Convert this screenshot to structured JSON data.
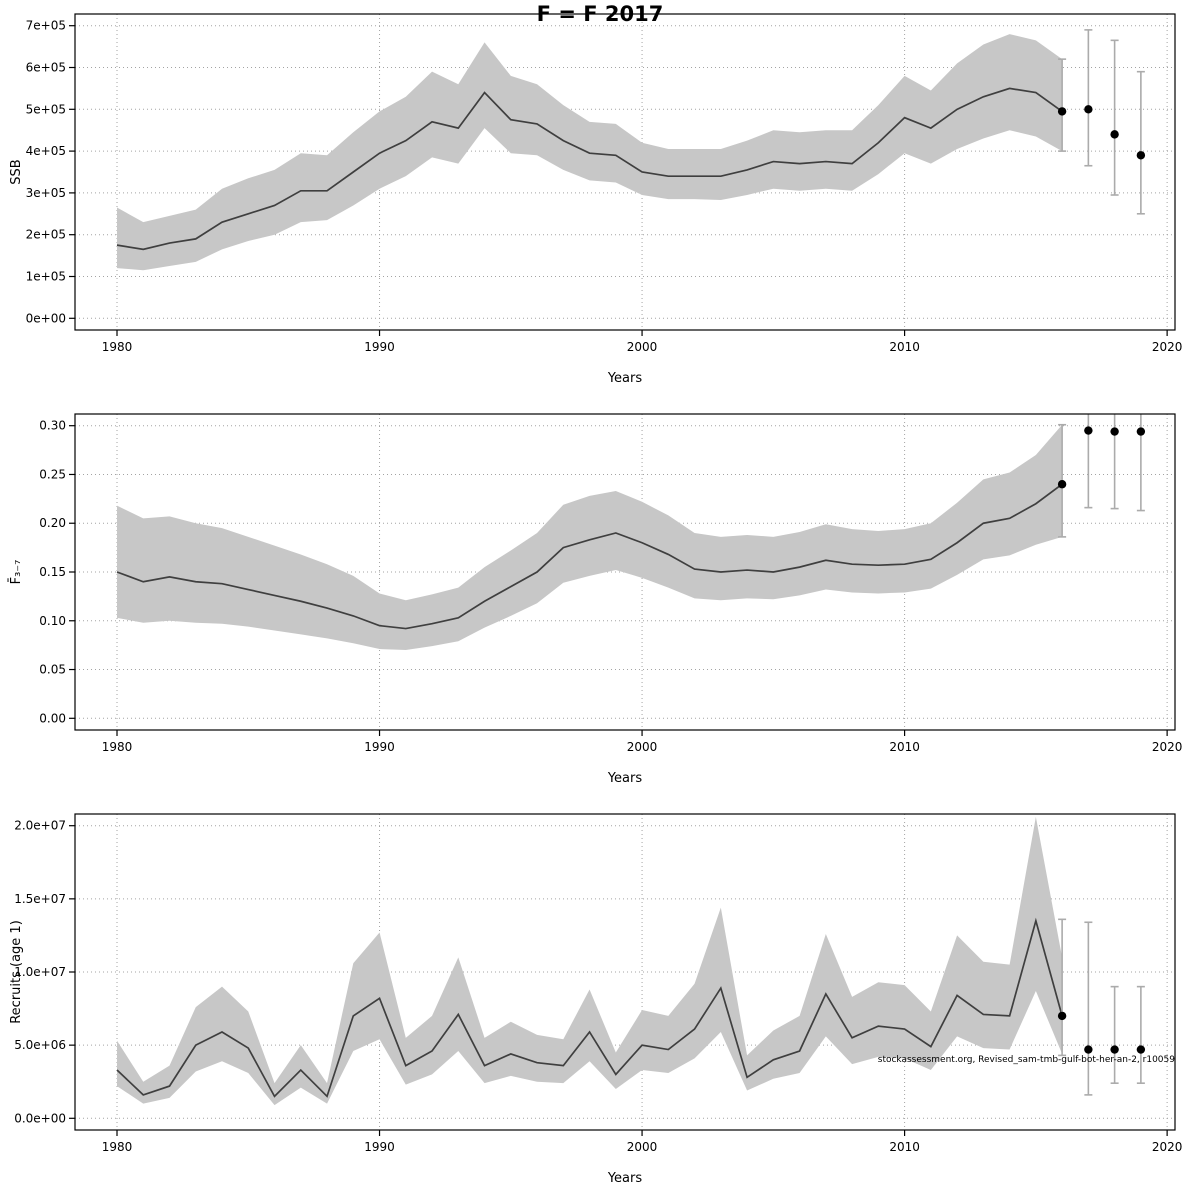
{
  "title": "F = F 2017",
  "colors": {
    "band": "#c7c7c7",
    "line": "#3f3f3f",
    "grid": "#a3a3a3",
    "errorbar": "#ababab",
    "point": "#000000",
    "axis": "#000000",
    "background": "#ffffff"
  },
  "chart_data": [
    {
      "type": "line",
      "name": "ssb",
      "xlabel": "Years",
      "ylabel": "SSB",
      "xlim": [
        1978.4,
        2020.3
      ],
      "ylim": [
        0,
        700000
      ],
      "xticks": [
        1980,
        1990,
        2000,
        2010,
        2020
      ],
      "yticks": [
        0,
        100000,
        200000,
        300000,
        400000,
        500000,
        600000,
        700000
      ],
      "ytick_labels": [
        "0e+00",
        "1e+05",
        "2e+05",
        "3e+05",
        "4e+05",
        "5e+05",
        "6e+05",
        "7e+05"
      ],
      "years": [
        1980,
        1981,
        1982,
        1983,
        1984,
        1985,
        1986,
        1987,
        1988,
        1989,
        1990,
        1991,
        1992,
        1993,
        1994,
        1995,
        1996,
        1997,
        1998,
        1999,
        2000,
        2001,
        2002,
        2003,
        2004,
        2005,
        2006,
        2007,
        2008,
        2009,
        2010,
        2011,
        2012,
        2013,
        2014,
        2015,
        2016
      ],
      "values": [
        175000,
        165000,
        180000,
        190000,
        230000,
        250000,
        270000,
        305000,
        305000,
        350000,
        395000,
        425000,
        470000,
        455000,
        540000,
        475000,
        465000,
        425000,
        395000,
        390000,
        350000,
        340000,
        340000,
        340000,
        355000,
        375000,
        370000,
        375000,
        370000,
        420000,
        480000,
        455000,
        500000,
        530000,
        550000,
        540000,
        495000
      ],
      "lower": [
        120000,
        115000,
        125000,
        135000,
        165000,
        185000,
        200000,
        230000,
        235000,
        270000,
        310000,
        340000,
        385000,
        370000,
        455000,
        395000,
        390000,
        355000,
        330000,
        325000,
        295000,
        285000,
        285000,
        283000,
        295000,
        310000,
        305000,
        310000,
        305000,
        345000,
        395000,
        370000,
        405000,
        430000,
        450000,
        435000,
        400000
      ],
      "upper": [
        265000,
        230000,
        245000,
        260000,
        310000,
        335000,
        355000,
        395000,
        390000,
        445000,
        495000,
        530000,
        590000,
        560000,
        660000,
        580000,
        560000,
        510000,
        470000,
        465000,
        420000,
        405000,
        405000,
        405000,
        425000,
        450000,
        445000,
        450000,
        450000,
        510000,
        580000,
        545000,
        610000,
        655000,
        680000,
        665000,
        620000
      ],
      "forecast": {
        "years": [
          2016,
          2017,
          2018,
          2019
        ],
        "values": [
          495000,
          500000,
          440000,
          390000
        ],
        "lower": [
          400000,
          365000,
          295000,
          250000
        ],
        "upper": [
          620000,
          690000,
          665000,
          590000
        ]
      },
      "watermark": ""
    },
    {
      "type": "line",
      "name": "fbar",
      "xlabel": "Years",
      "ylabel": "F̄₃₋₇",
      "xlim": [
        1978.4,
        2020.3
      ],
      "ylim": [
        0,
        0.3
      ],
      "xticks": [
        1980,
        1990,
        2000,
        2010,
        2020
      ],
      "yticks": [
        0.0,
        0.05,
        0.1,
        0.15,
        0.2,
        0.25,
        0.3
      ],
      "ytick_labels": [
        "0.00",
        "0.05",
        "0.10",
        "0.15",
        "0.20",
        "0.25",
        "0.30"
      ],
      "years": [
        1980,
        1981,
        1982,
        1983,
        1984,
        1985,
        1986,
        1987,
        1988,
        1989,
        1990,
        1991,
        1992,
        1993,
        1994,
        1995,
        1996,
        1997,
        1998,
        1999,
        2000,
        2001,
        2002,
        2003,
        2004,
        2005,
        2006,
        2007,
        2008,
        2009,
        2010,
        2011,
        2012,
        2013,
        2014,
        2015,
        2016
      ],
      "values": [
        0.15,
        0.14,
        0.145,
        0.14,
        0.138,
        0.132,
        0.126,
        0.12,
        0.113,
        0.105,
        0.095,
        0.092,
        0.097,
        0.103,
        0.12,
        0.135,
        0.15,
        0.175,
        0.183,
        0.19,
        0.18,
        0.168,
        0.153,
        0.15,
        0.152,
        0.15,
        0.155,
        0.162,
        0.158,
        0.157,
        0.158,
        0.163,
        0.18,
        0.2,
        0.205,
        0.22,
        0.24
      ],
      "lower": [
        0.103,
        0.098,
        0.1,
        0.098,
        0.097,
        0.094,
        0.09,
        0.086,
        0.082,
        0.077,
        0.071,
        0.07,
        0.074,
        0.079,
        0.093,
        0.105,
        0.118,
        0.139,
        0.146,
        0.152,
        0.144,
        0.134,
        0.123,
        0.121,
        0.123,
        0.122,
        0.126,
        0.132,
        0.129,
        0.128,
        0.129,
        0.133,
        0.147,
        0.163,
        0.167,
        0.178,
        0.186
      ],
      "upper": [
        0.218,
        0.205,
        0.207,
        0.2,
        0.195,
        0.186,
        0.177,
        0.168,
        0.158,
        0.146,
        0.128,
        0.121,
        0.127,
        0.134,
        0.155,
        0.172,
        0.19,
        0.219,
        0.228,
        0.233,
        0.222,
        0.208,
        0.19,
        0.186,
        0.188,
        0.186,
        0.191,
        0.199,
        0.194,
        0.192,
        0.194,
        0.2,
        0.221,
        0.245,
        0.252,
        0.27,
        0.301
      ],
      "forecast": {
        "years": [
          2016,
          2017,
          2018,
          2019
        ],
        "values": [
          0.24,
          0.295,
          0.294,
          0.294
        ],
        "lower": [
          0.186,
          0.216,
          0.215,
          0.213
        ],
        "upper": [
          0.301,
          0.335,
          0.335,
          0.335
        ]
      },
      "watermark": ""
    },
    {
      "type": "line",
      "name": "recruits",
      "xlabel": "Years",
      "ylabel": "Recruits (age 1)",
      "xlim": [
        1978.4,
        2020.3
      ],
      "ylim": [
        0,
        20000000
      ],
      "xticks": [
        1980,
        1990,
        2000,
        2010,
        2020
      ],
      "yticks": [
        0,
        5000000,
        10000000,
        15000000,
        20000000
      ],
      "ytick_labels": [
        "0.0e+00",
        "5.0e+06",
        "1.0e+07",
        "1.5e+07",
        "2.0e+07"
      ],
      "years": [
        1980,
        1981,
        1982,
        1983,
        1984,
        1985,
        1986,
        1987,
        1988,
        1989,
        1990,
        1991,
        1992,
        1993,
        1994,
        1995,
        1996,
        1997,
        1998,
        1999,
        2000,
        2001,
        2002,
        2003,
        2004,
        2005,
        2006,
        2007,
        2008,
        2009,
        2010,
        2011,
        2012,
        2013,
        2014,
        2015,
        2016
      ],
      "values": [
        3300000,
        1600000,
        2200000,
        5000000,
        5900000,
        4800000,
        1500000,
        3300000,
        1500000,
        7000000,
        8200000,
        3600000,
        4600000,
        7100000,
        3600000,
        4400000,
        3800000,
        3600000,
        5900000,
        3000000,
        5000000,
        4700000,
        6100000,
        8900000,
        2800000,
        4000000,
        4600000,
        8500000,
        5500000,
        6300000,
        6100000,
        4900000,
        8400000,
        7100000,
        7000000,
        13500000,
        7000000
      ],
      "lower": [
        2200000,
        1000000,
        1400000,
        3200000,
        3900000,
        3100000,
        900000,
        2100000,
        1000000,
        4600000,
        5400000,
        2300000,
        3000000,
        4600000,
        2400000,
        2900000,
        2500000,
        2400000,
        3900000,
        2000000,
        3300000,
        3100000,
        4100000,
        5900000,
        1900000,
        2700000,
        3100000,
        5600000,
        3700000,
        4200000,
        4100000,
        3300000,
        5600000,
        4800000,
        4700000,
        8700000,
        4400000
      ],
      "upper": [
        5300000,
        2500000,
        3600000,
        7600000,
        9000000,
        7300000,
        2400000,
        5000000,
        2400000,
        10600000,
        12700000,
        5500000,
        7000000,
        11000000,
        5500000,
        6600000,
        5700000,
        5400000,
        8800000,
        4500000,
        7400000,
        7000000,
        9200000,
        14400000,
        4300000,
        6000000,
        7000000,
        12600000,
        8300000,
        9300000,
        9100000,
        7300000,
        12500000,
        10700000,
        10500000,
        20600000,
        11000000
      ],
      "forecast": {
        "years": [
          2016,
          2017,
          2018,
          2019
        ],
        "values": [
          7000000,
          4700000,
          4700000,
          4700000
        ],
        "lower": [
          4300000,
          1600000,
          2400000,
          2400000
        ],
        "upper": [
          13600000,
          13400000,
          9000000,
          9000000
        ]
      },
      "watermark": "stockassessment.org, Revised_sam-tmb-gulf-bot-her-an-2, r10059"
    }
  ]
}
